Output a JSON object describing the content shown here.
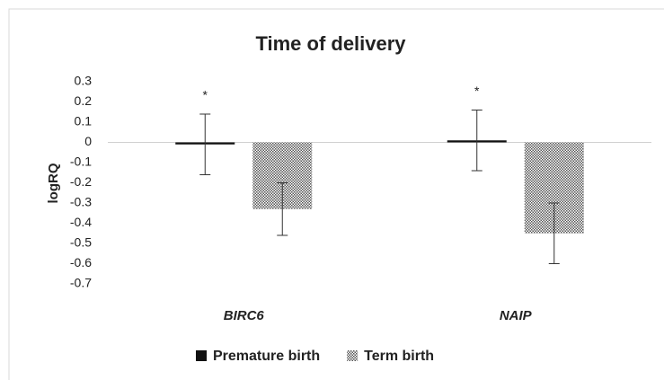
{
  "chart_data": {
    "type": "bar",
    "title": "Time of delivery",
    "y_label": "logRQ",
    "categories": [
      "BIRC6",
      "NAIP"
    ],
    "series": [
      {
        "name": "Premature birth",
        "color": "#111111",
        "pattern": "solid",
        "values": [
          -0.01,
          0.01
        ],
        "errors": [
          0.15,
          0.15
        ]
      },
      {
        "name": "Term birth",
        "color": "#555555",
        "pattern": "checker",
        "values": [
          -0.33,
          -0.45
        ],
        "errors": [
          0.13,
          0.15
        ]
      }
    ],
    "annotations": [
      "*",
      "*"
    ],
    "ylim": [
      -0.7,
      0.3
    ],
    "yticks": [
      0.3,
      0.2,
      0.1,
      0,
      -0.1,
      -0.2,
      -0.3,
      -0.4,
      -0.5,
      -0.6,
      -0.7
    ],
    "grid": false,
    "legend": "bottom"
  }
}
